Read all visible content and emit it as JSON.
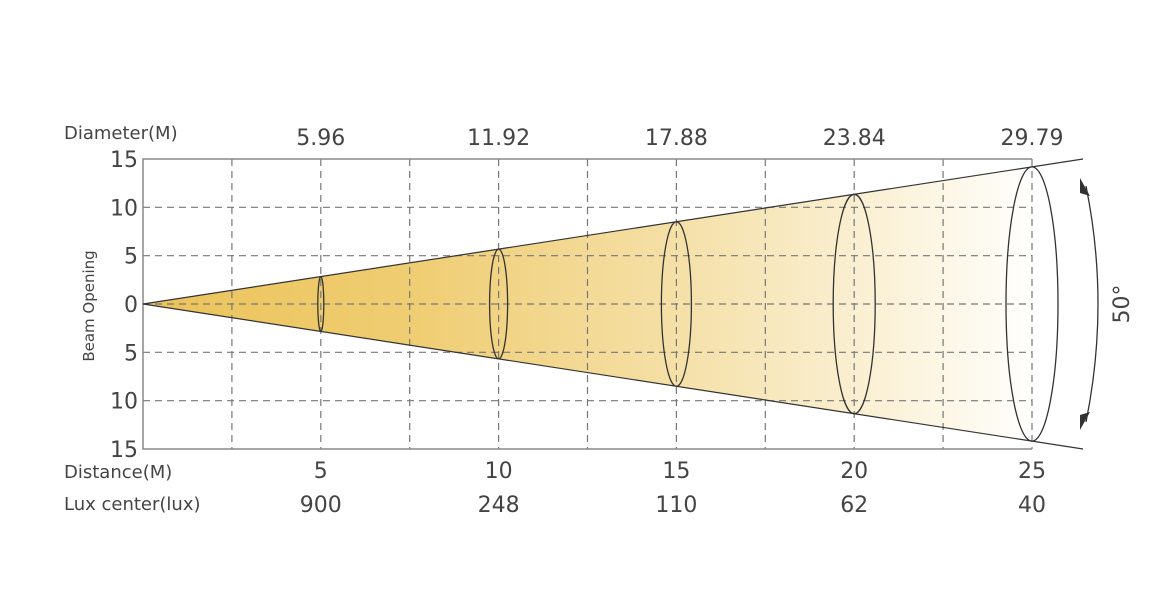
{
  "chart_data": {
    "type": "beam-angle-diagram",
    "beam_angle_label": "50°",
    "ylabel": "Beam Opening",
    "yticks": [
      "15",
      "10",
      "5",
      "0",
      "5",
      "10",
      "15"
    ],
    "diameter_label": "Diameter(M)",
    "distance_label": "Distance(M)",
    "lux_label": "Lux center(lux)",
    "distances": [
      5,
      10,
      15,
      20,
      25
    ],
    "diameters": [
      "5.96",
      "11.92",
      "17.88",
      "23.84",
      "29.79"
    ],
    "lux": [
      900,
      248,
      110,
      62,
      40
    ],
    "xlim": [
      0,
      25
    ],
    "ylim": [
      -15,
      15
    ],
    "grid": true,
    "colors": {
      "beam": "#ebc35a",
      "line": "#333333",
      "grid": "#777777"
    }
  }
}
